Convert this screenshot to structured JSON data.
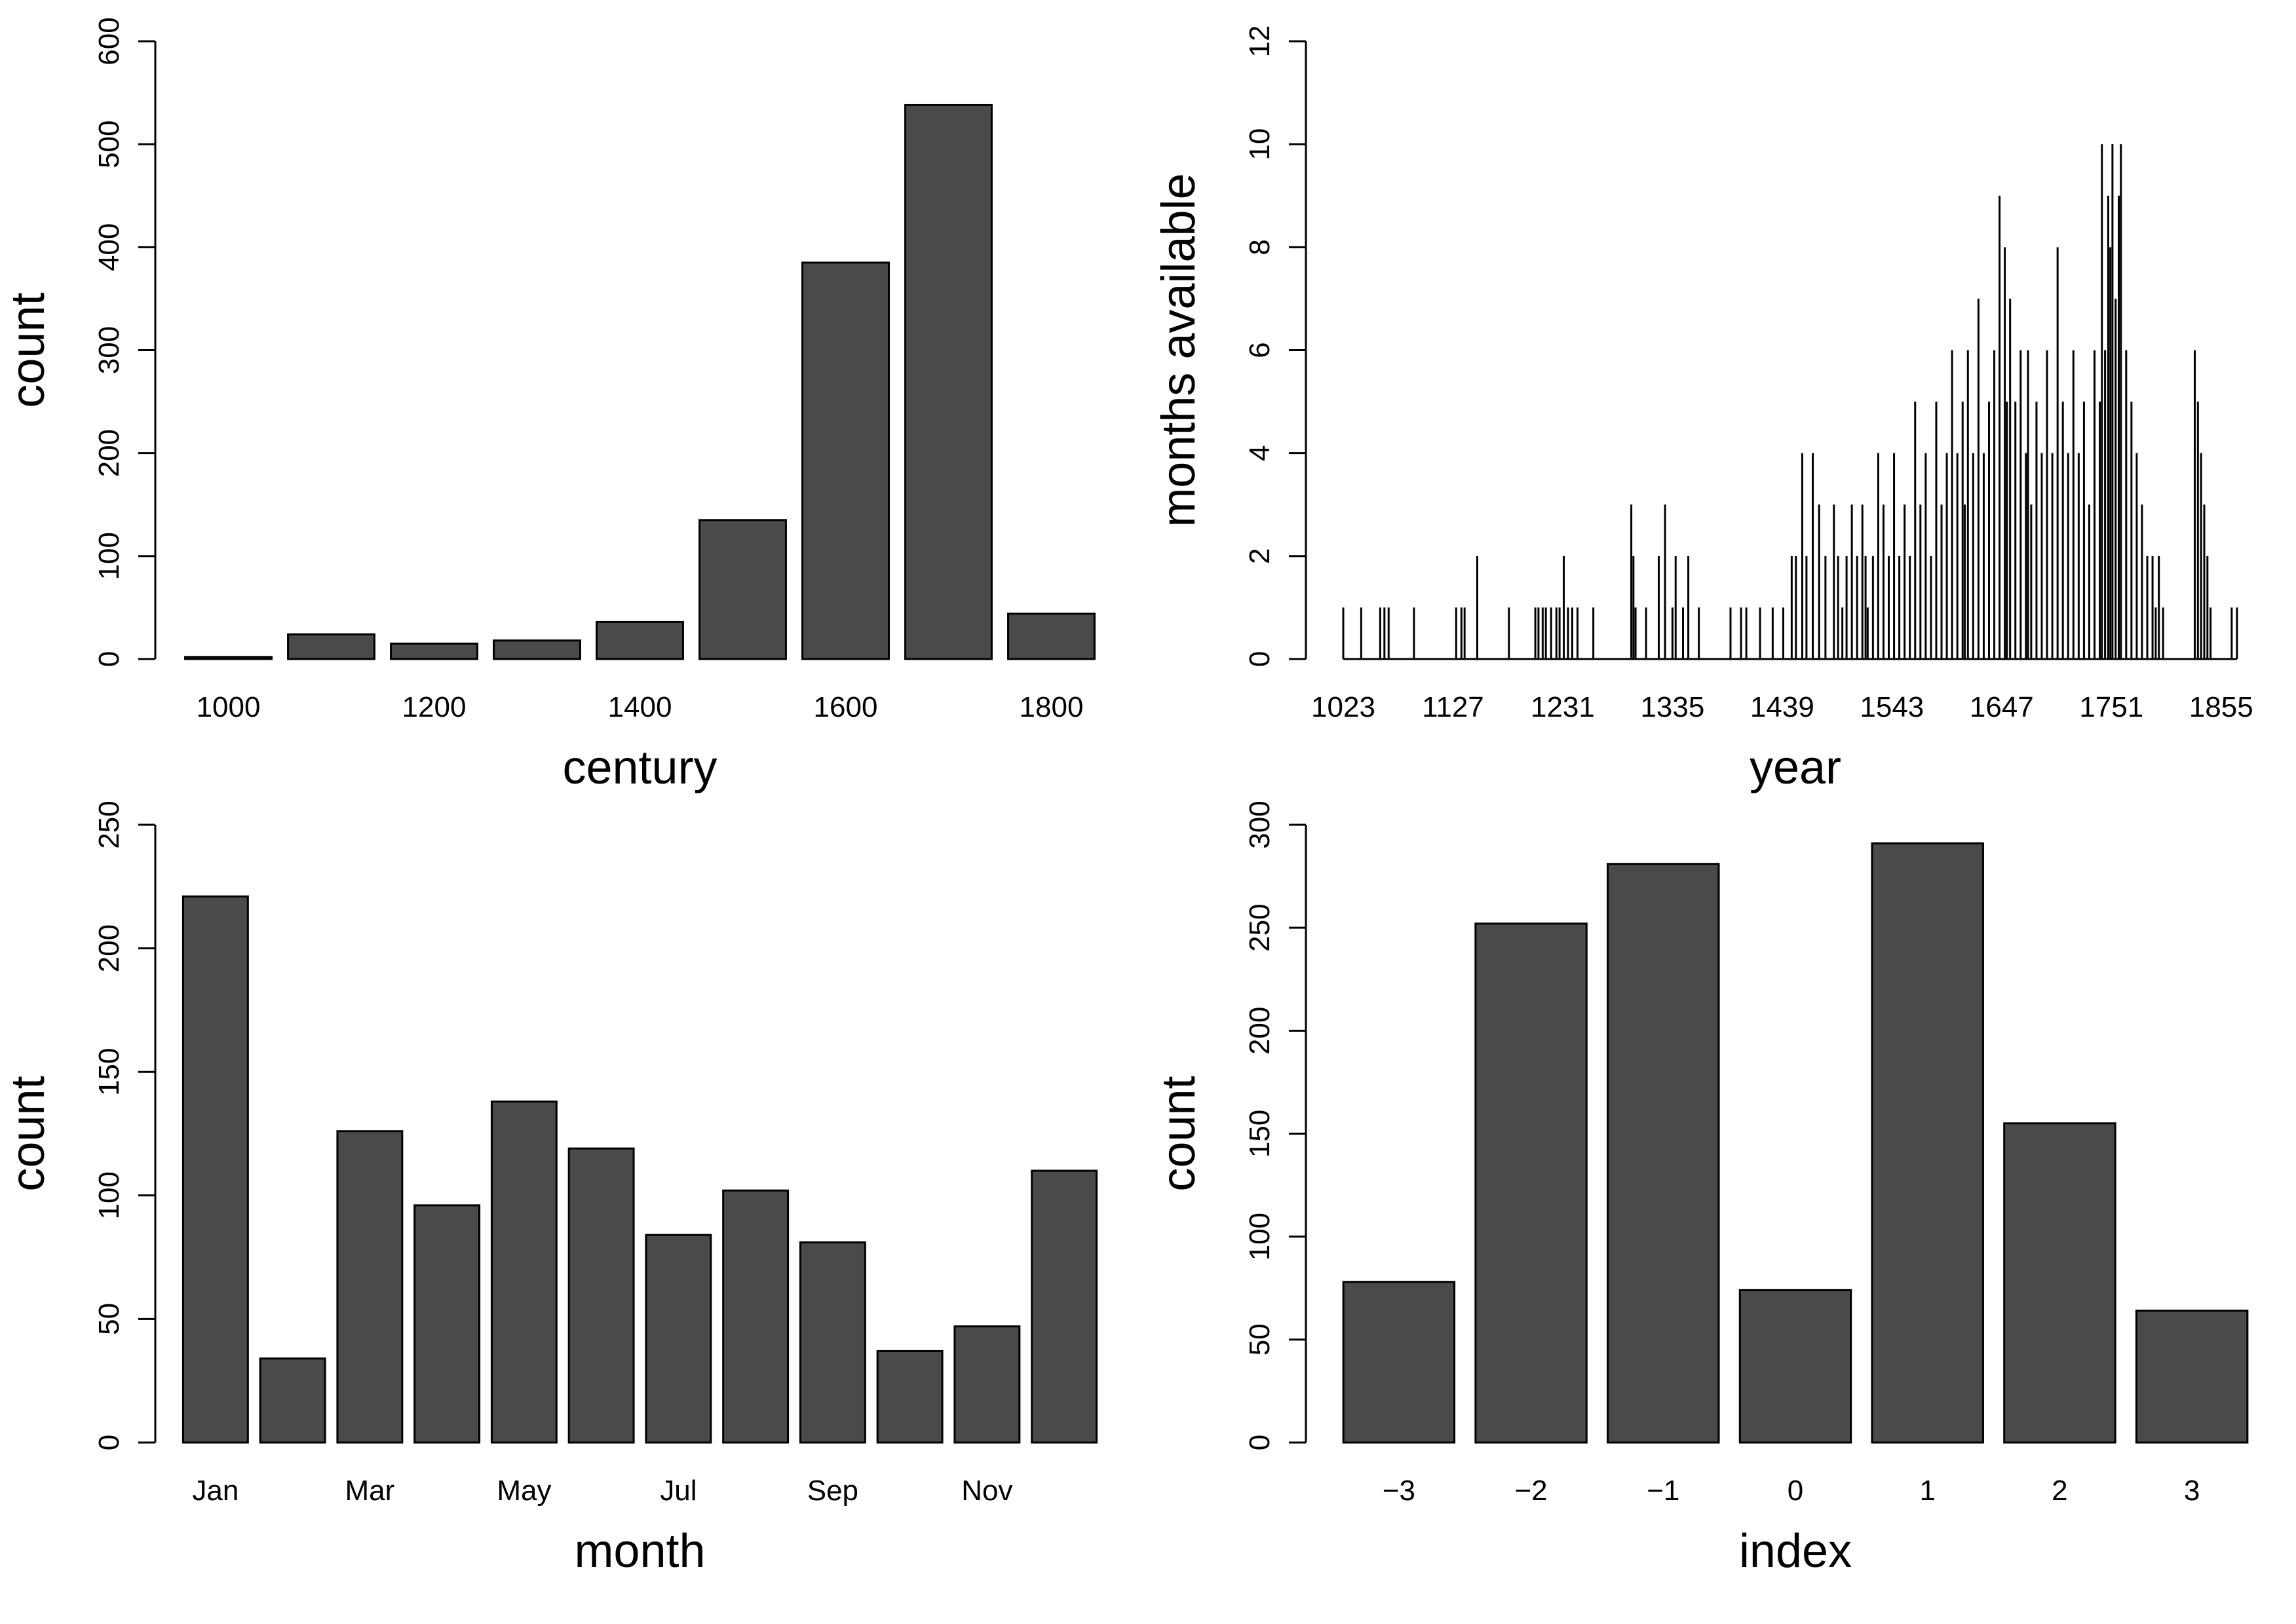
{
  "colors": {
    "bar_fill": "#4a4a4a",
    "spike": "#000000",
    "background": "#ffffff"
  },
  "chart_data": [
    {
      "type": "bar",
      "xlabel": "century",
      "ylabel": "count",
      "ylim": [
        0,
        600
      ],
      "yticks": [
        0,
        100,
        200,
        300,
        400,
        500,
        600
      ],
      "categories": [
        "1000",
        "1100",
        "1200",
        "1300",
        "1400",
        "1500",
        "1600",
        "1700",
        "1800"
      ],
      "category_labels": [
        "1000",
        "",
        "1200",
        "",
        "1400",
        "",
        "1600",
        "",
        "1800"
      ],
      "values": [
        2,
        24,
        15,
        18,
        36,
        135,
        385,
        538,
        44
      ],
      "grid": false
    },
    {
      "type": "bar",
      "style": "spike",
      "xlabel": "year",
      "ylabel": "months available",
      "ylim": [
        0,
        12
      ],
      "yticks": [
        0,
        2,
        4,
        6,
        8,
        10,
        12
      ],
      "xlim": [
        1023,
        1880
      ],
      "xticks": [
        1023,
        1127,
        1231,
        1335,
        1439,
        1543,
        1647,
        1751,
        1855
      ],
      "x": [
        1023,
        1040,
        1058,
        1062,
        1066,
        1090,
        1130,
        1135,
        1138,
        1150,
        1180,
        1205,
        1208,
        1212,
        1215,
        1220,
        1225,
        1228,
        1232,
        1236,
        1240,
        1245,
        1260,
        1296,
        1298,
        1300,
        1310,
        1322,
        1328,
        1335,
        1338,
        1345,
        1350,
        1360,
        1390,
        1400,
        1405,
        1418,
        1430,
        1440,
        1448,
        1452,
        1458,
        1462,
        1468,
        1474,
        1480,
        1488,
        1492,
        1496,
        1500,
        1505,
        1510,
        1515,
        1518,
        1520,
        1525,
        1530,
        1535,
        1540,
        1545,
        1550,
        1555,
        1560,
        1565,
        1570,
        1575,
        1580,
        1585,
        1590,
        1595,
        1600,
        1605,
        1610,
        1612,
        1615,
        1620,
        1625,
        1630,
        1635,
        1640,
        1645,
        1650,
        1652,
        1655,
        1660,
        1665,
        1670,
        1672,
        1675,
        1680,
        1685,
        1690,
        1695,
        1700,
        1705,
        1710,
        1715,
        1720,
        1725,
        1730,
        1735,
        1740,
        1742,
        1745,
        1748,
        1750,
        1752,
        1755,
        1758,
        1760,
        1765,
        1770,
        1775,
        1780,
        1785,
        1790,
        1793,
        1796,
        1800,
        1830,
        1833,
        1836,
        1839,
        1842,
        1845,
        1865,
        1870
      ],
      "values": [
        1,
        1,
        1,
        1,
        1,
        1,
        1,
        1,
        1,
        2,
        1,
        1,
        1,
        1,
        1,
        1,
        1,
        1,
        2,
        1,
        1,
        1,
        1,
        3,
        2,
        1,
        1,
        2,
        3,
        1,
        2,
        1,
        2,
        1,
        1,
        1,
        1,
        1,
        1,
        1,
        2,
        2,
        4,
        2,
        4,
        3,
        2,
        3,
        2,
        1,
        2,
        3,
        2,
        3,
        2,
        1,
        2,
        4,
        3,
        2,
        4,
        2,
        3,
        2,
        5,
        3,
        4,
        2,
        5,
        3,
        4,
        6,
        4,
        5,
        3,
        6,
        4,
        7,
        4,
        5,
        6,
        9,
        8,
        5,
        7,
        5,
        6,
        4,
        6,
        3,
        5,
        4,
        6,
        4,
        8,
        5,
        4,
        6,
        4,
        5,
        3,
        6,
        5,
        10,
        6,
        9,
        8,
        10,
        7,
        9,
        10,
        6,
        5,
        4,
        3,
        2,
        2,
        1,
        2,
        1,
        6,
        5,
        4,
        3,
        2,
        1,
        1,
        1
      ],
      "grid": false
    },
    {
      "type": "bar",
      "xlabel": "month",
      "ylabel": "count",
      "ylim": [
        0,
        250
      ],
      "yticks": [
        0,
        50,
        100,
        150,
        200,
        250
      ],
      "categories": [
        "Jan",
        "Feb",
        "Mar",
        "Apr",
        "May",
        "Jun",
        "Jul",
        "Aug",
        "Sep",
        "Oct",
        "Nov",
        "Dec"
      ],
      "category_labels": [
        "Jan",
        "",
        "Mar",
        "",
        "May",
        "",
        "Jul",
        "",
        "Sep",
        "",
        "Nov",
        ""
      ],
      "values": [
        221,
        34,
        126,
        96,
        138,
        119,
        84,
        102,
        81,
        37,
        47,
        110
      ],
      "grid": false
    },
    {
      "type": "bar",
      "xlabel": "index",
      "ylabel": "count",
      "ylim": [
        0,
        300
      ],
      "yticks": [
        0,
        50,
        100,
        150,
        200,
        250,
        300
      ],
      "categories": [
        "−3",
        "−2",
        "−1",
        "0",
        "1",
        "2",
        "3"
      ],
      "category_labels": [
        "−3",
        "−2",
        "−1",
        "0",
        "1",
        "2",
        "3"
      ],
      "values": [
        78,
        252,
        281,
        74,
        291,
        155,
        64
      ],
      "grid": false
    }
  ]
}
